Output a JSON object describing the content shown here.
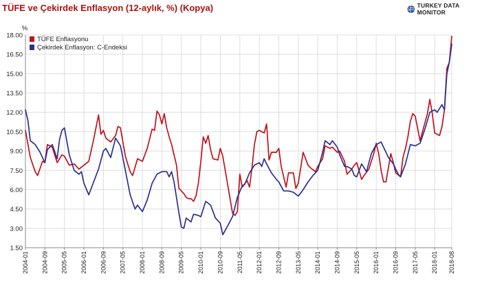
{
  "title": "TÜFE ve Çekirdek Enflasyon (12-aylık, %) (Kopya)",
  "brand": {
    "name": "TURKEY DATA MONITOR",
    "logo_icon": "globe-logo-icon"
  },
  "colors": {
    "tufe": "#c0121c",
    "core": "#2b2f8e",
    "grid": "#dddddd"
  },
  "chart_data": {
    "type": "line",
    "title": "TÜFE ve Çekirdek Enflasyon (12-aylık, %) (Kopya)",
    "ylabel": "%",
    "xlabel": "",
    "ylim": [
      1.5,
      18.0
    ],
    "yticks": [
      "1.50",
      "3.00",
      "4.50",
      "6.00",
      "7.50",
      "9.00",
      "10.50",
      "12.00",
      "13.50",
      "15.00",
      "16.50",
      "18.00"
    ],
    "xtick_labels": [
      "2004-01",
      "2004-09",
      "2005-05",
      "2006-01",
      "2006-09",
      "2007-05",
      "2008-01",
      "2008-09",
      "2009-05",
      "2010-01",
      "2010-09",
      "2011-05",
      "2012-01",
      "2012-09",
      "2013-05",
      "2014-01",
      "2014-09",
      "2015-05",
      "2016-01",
      "2016-09",
      "2017-05",
      "2018-01",
      "2018-08"
    ],
    "grid": true,
    "legend_position": "top-left",
    "series": [
      {
        "name": "TÜFE Enflasyonu",
        "color": "#c0121c",
        "points": [
          [
            "2004-01",
            10.6
          ],
          [
            "2004-03",
            8.5
          ],
          [
            "2004-05",
            7.4
          ],
          [
            "2004-06",
            7.1
          ],
          [
            "2004-08",
            8.2
          ],
          [
            "2004-09",
            8.1
          ],
          [
            "2004-10",
            9.5
          ],
          [
            "2004-12",
            9.3
          ],
          [
            "2005-02",
            8.1
          ],
          [
            "2005-04",
            8.7
          ],
          [
            "2005-05",
            8.6
          ],
          [
            "2005-07",
            7.9
          ],
          [
            "2005-09",
            8.0
          ],
          [
            "2005-11",
            7.6
          ],
          [
            "2006-01",
            7.9
          ],
          [
            "2006-03",
            8.2
          ],
          [
            "2006-05",
            9.9
          ],
          [
            "2006-07",
            11.8
          ],
          [
            "2006-08",
            10.3
          ],
          [
            "2006-09",
            10.6
          ],
          [
            "2006-10",
            10.0
          ],
          [
            "2006-12",
            9.7
          ],
          [
            "2007-02",
            10.2
          ],
          [
            "2007-03",
            10.9
          ],
          [
            "2007-04",
            10.8
          ],
          [
            "2007-06",
            8.6
          ],
          [
            "2007-08",
            7.4
          ],
          [
            "2007-09",
            7.1
          ],
          [
            "2007-11",
            8.4
          ],
          [
            "2008-01",
            8.2
          ],
          [
            "2008-03",
            9.2
          ],
          [
            "2008-05",
            10.7
          ],
          [
            "2008-06",
            10.6
          ],
          [
            "2008-07",
            12.1
          ],
          [
            "2008-08",
            11.8
          ],
          [
            "2008-09",
            11.1
          ],
          [
            "2008-10",
            11.9
          ],
          [
            "2008-11",
            10.8
          ],
          [
            "2008-12",
            10.1
          ],
          [
            "2009-01",
            9.5
          ],
          [
            "2009-03",
            7.9
          ],
          [
            "2009-04",
            6.1
          ],
          [
            "2009-06",
            5.7
          ],
          [
            "2009-07",
            5.4
          ],
          [
            "2009-08",
            5.3
          ],
          [
            "2009-09",
            5.3
          ],
          [
            "2009-10",
            5.1
          ],
          [
            "2009-11",
            5.5
          ],
          [
            "2009-12",
            6.5
          ],
          [
            "2010-01",
            8.2
          ],
          [
            "2010-02",
            10.1
          ],
          [
            "2010-03",
            9.6
          ],
          [
            "2010-04",
            10.2
          ],
          [
            "2010-05",
            9.1
          ],
          [
            "2010-06",
            8.4
          ],
          [
            "2010-08",
            8.3
          ],
          [
            "2010-09",
            9.2
          ],
          [
            "2010-10",
            8.6
          ],
          [
            "2010-12",
            6.4
          ],
          [
            "2011-02",
            4.2
          ],
          [
            "2011-03",
            4.0
          ],
          [
            "2011-04",
            4.3
          ],
          [
            "2011-05",
            7.2
          ],
          [
            "2011-06",
            6.2
          ],
          [
            "2011-08",
            6.7
          ],
          [
            "2011-09",
            6.2
          ],
          [
            "2011-10",
            7.7
          ],
          [
            "2011-11",
            9.5
          ],
          [
            "2011-12",
            10.5
          ],
          [
            "2012-01",
            10.6
          ],
          [
            "2012-03",
            10.4
          ],
          [
            "2012-04",
            11.1
          ],
          [
            "2012-05",
            8.3
          ],
          [
            "2012-06",
            8.9
          ],
          [
            "2012-08",
            8.9
          ],
          [
            "2012-09",
            9.2
          ],
          [
            "2012-10",
            7.8
          ],
          [
            "2012-12",
            6.2
          ],
          [
            "2013-01",
            7.3
          ],
          [
            "2013-03",
            7.3
          ],
          [
            "2013-04",
            6.1
          ],
          [
            "2013-05",
            6.5
          ],
          [
            "2013-07",
            8.9
          ],
          [
            "2013-09",
            7.9
          ],
          [
            "2013-10",
            7.7
          ],
          [
            "2013-12",
            7.4
          ],
          [
            "2014-01",
            7.8
          ],
          [
            "2014-03",
            8.4
          ],
          [
            "2014-04",
            9.4
          ],
          [
            "2014-06",
            9.2
          ],
          [
            "2014-07",
            9.3
          ],
          [
            "2014-09",
            8.9
          ],
          [
            "2014-10",
            9.0
          ],
          [
            "2014-12",
            8.2
          ],
          [
            "2015-01",
            7.2
          ],
          [
            "2015-03",
            7.6
          ],
          [
            "2015-04",
            7.9
          ],
          [
            "2015-05",
            8.1
          ],
          [
            "2015-07",
            6.8
          ],
          [
            "2015-08",
            7.1
          ],
          [
            "2015-10",
            7.6
          ],
          [
            "2015-12",
            8.8
          ],
          [
            "2016-01",
            9.6
          ],
          [
            "2016-02",
            8.8
          ],
          [
            "2016-03",
            7.5
          ],
          [
            "2016-04",
            6.6
          ],
          [
            "2016-05",
            6.6
          ],
          [
            "2016-07",
            8.8
          ],
          [
            "2016-08",
            8.1
          ],
          [
            "2016-09",
            7.3
          ],
          [
            "2016-11",
            7.0
          ],
          [
            "2016-12",
            8.5
          ],
          [
            "2017-01",
            9.2
          ],
          [
            "2017-02",
            10.1
          ],
          [
            "2017-03",
            11.3
          ],
          [
            "2017-04",
            11.9
          ],
          [
            "2017-05",
            11.7
          ],
          [
            "2017-07",
            9.8
          ],
          [
            "2017-09",
            11.2
          ],
          [
            "2017-10",
            11.9
          ],
          [
            "2017-11",
            13.0
          ],
          [
            "2017-12",
            11.9
          ],
          [
            "2018-01",
            10.4
          ],
          [
            "2018-02",
            10.3
          ],
          [
            "2018-03",
            10.2
          ],
          [
            "2018-04",
            10.9
          ],
          [
            "2018-05",
            12.2
          ],
          [
            "2018-06",
            15.4
          ],
          [
            "2018-07",
            15.9
          ],
          [
            "2018-08",
            17.9
          ]
        ]
      },
      {
        "name": "Çekirdek Enflasyon: C-Endeksi",
        "color": "#2b2f8e",
        "points": [
          [
            "2004-01",
            12.2
          ],
          [
            "2004-02",
            11.4
          ],
          [
            "2004-03",
            9.8
          ],
          [
            "2004-05",
            9.5
          ],
          [
            "2004-07",
            8.9
          ],
          [
            "2004-09",
            8.1
          ],
          [
            "2004-10",
            9.1
          ],
          [
            "2004-12",
            9.5
          ],
          [
            "2005-02",
            8.4
          ],
          [
            "2005-03",
            9.9
          ],
          [
            "2005-04",
            10.6
          ],
          [
            "2005-05",
            10.8
          ],
          [
            "2005-07",
            8.7
          ],
          [
            "2005-09",
            7.5
          ],
          [
            "2005-11",
            7.2
          ],
          [
            "2005-12",
            7.4
          ],
          [
            "2006-01",
            6.5
          ],
          [
            "2006-03",
            5.6
          ],
          [
            "2006-05",
            6.6
          ],
          [
            "2006-07",
            7.6
          ],
          [
            "2006-09",
            9.0
          ],
          [
            "2006-10",
            9.2
          ],
          [
            "2006-12",
            8.5
          ],
          [
            "2007-02",
            10.0
          ],
          [
            "2007-04",
            9.4
          ],
          [
            "2007-06",
            7.5
          ],
          [
            "2007-08",
            5.6
          ],
          [
            "2007-10",
            4.5
          ],
          [
            "2007-11",
            4.8
          ],
          [
            "2008-01",
            4.3
          ],
          [
            "2008-03",
            5.2
          ],
          [
            "2008-05",
            6.5
          ],
          [
            "2008-07",
            7.2
          ],
          [
            "2008-09",
            7.4
          ],
          [
            "2008-11",
            7.4
          ],
          [
            "2008-12",
            7.0
          ],
          [
            "2009-01",
            7.4
          ],
          [
            "2009-02",
            6.6
          ],
          [
            "2009-04",
            4.2
          ],
          [
            "2009-05",
            3.1
          ],
          [
            "2009-06",
            3.0
          ],
          [
            "2009-07",
            3.8
          ],
          [
            "2009-09",
            3.5
          ],
          [
            "2009-10",
            4.1
          ],
          [
            "2009-12",
            4.0
          ],
          [
            "2010-01",
            3.9
          ],
          [
            "2010-03",
            5.1
          ],
          [
            "2010-05",
            4.8
          ],
          [
            "2010-07",
            3.8
          ],
          [
            "2010-09",
            3.4
          ],
          [
            "2010-10",
            2.5
          ],
          [
            "2010-12",
            3.2
          ],
          [
            "2011-02",
            3.9
          ],
          [
            "2011-04",
            5.4
          ],
          [
            "2011-06",
            6.3
          ],
          [
            "2011-07",
            6.4
          ],
          [
            "2011-09",
            7.3
          ],
          [
            "2011-11",
            7.9
          ],
          [
            "2012-01",
            8.1
          ],
          [
            "2012-02",
            7.8
          ],
          [
            "2012-03",
            8.4
          ],
          [
            "2012-04",
            8.0
          ],
          [
            "2012-06",
            7.3
          ],
          [
            "2012-08",
            6.8
          ],
          [
            "2012-09",
            6.6
          ],
          [
            "2012-11",
            5.9
          ],
          [
            "2013-01",
            5.9
          ],
          [
            "2013-03",
            5.8
          ],
          [
            "2013-05",
            5.5
          ],
          [
            "2013-07",
            6.0
          ],
          [
            "2013-09",
            6.6
          ],
          [
            "2013-11",
            7.1
          ],
          [
            "2014-01",
            7.5
          ],
          [
            "2014-03",
            8.9
          ],
          [
            "2014-04",
            9.8
          ],
          [
            "2014-06",
            9.5
          ],
          [
            "2014-07",
            9.8
          ],
          [
            "2014-09",
            9.3
          ],
          [
            "2014-10",
            8.7
          ],
          [
            "2014-12",
            7.8
          ],
          [
            "2015-01",
            7.8
          ],
          [
            "2015-03",
            7.6
          ],
          [
            "2015-04",
            7.1
          ],
          [
            "2015-05",
            7.0
          ],
          [
            "2015-07",
            8.0
          ],
          [
            "2015-09",
            7.4
          ],
          [
            "2015-11",
            8.8
          ],
          [
            "2016-01",
            9.5
          ],
          [
            "2016-03",
            9.7
          ],
          [
            "2016-04",
            9.3
          ],
          [
            "2016-06",
            8.5
          ],
          [
            "2016-08",
            8.0
          ],
          [
            "2016-10",
            7.2
          ],
          [
            "2016-11",
            7.0
          ],
          [
            "2017-01",
            8.0
          ],
          [
            "2017-03",
            9.5
          ],
          [
            "2017-05",
            9.4
          ],
          [
            "2017-07",
            9.6
          ],
          [
            "2017-09",
            10.7
          ],
          [
            "2017-11",
            12.0
          ],
          [
            "2018-01",
            12.2
          ],
          [
            "2018-02",
            12.0
          ],
          [
            "2018-04",
            12.6
          ],
          [
            "2018-05",
            12.2
          ],
          [
            "2018-06",
            15.0
          ],
          [
            "2018-07",
            15.9
          ],
          [
            "2018-08",
            17.3
          ]
        ]
      }
    ]
  }
}
